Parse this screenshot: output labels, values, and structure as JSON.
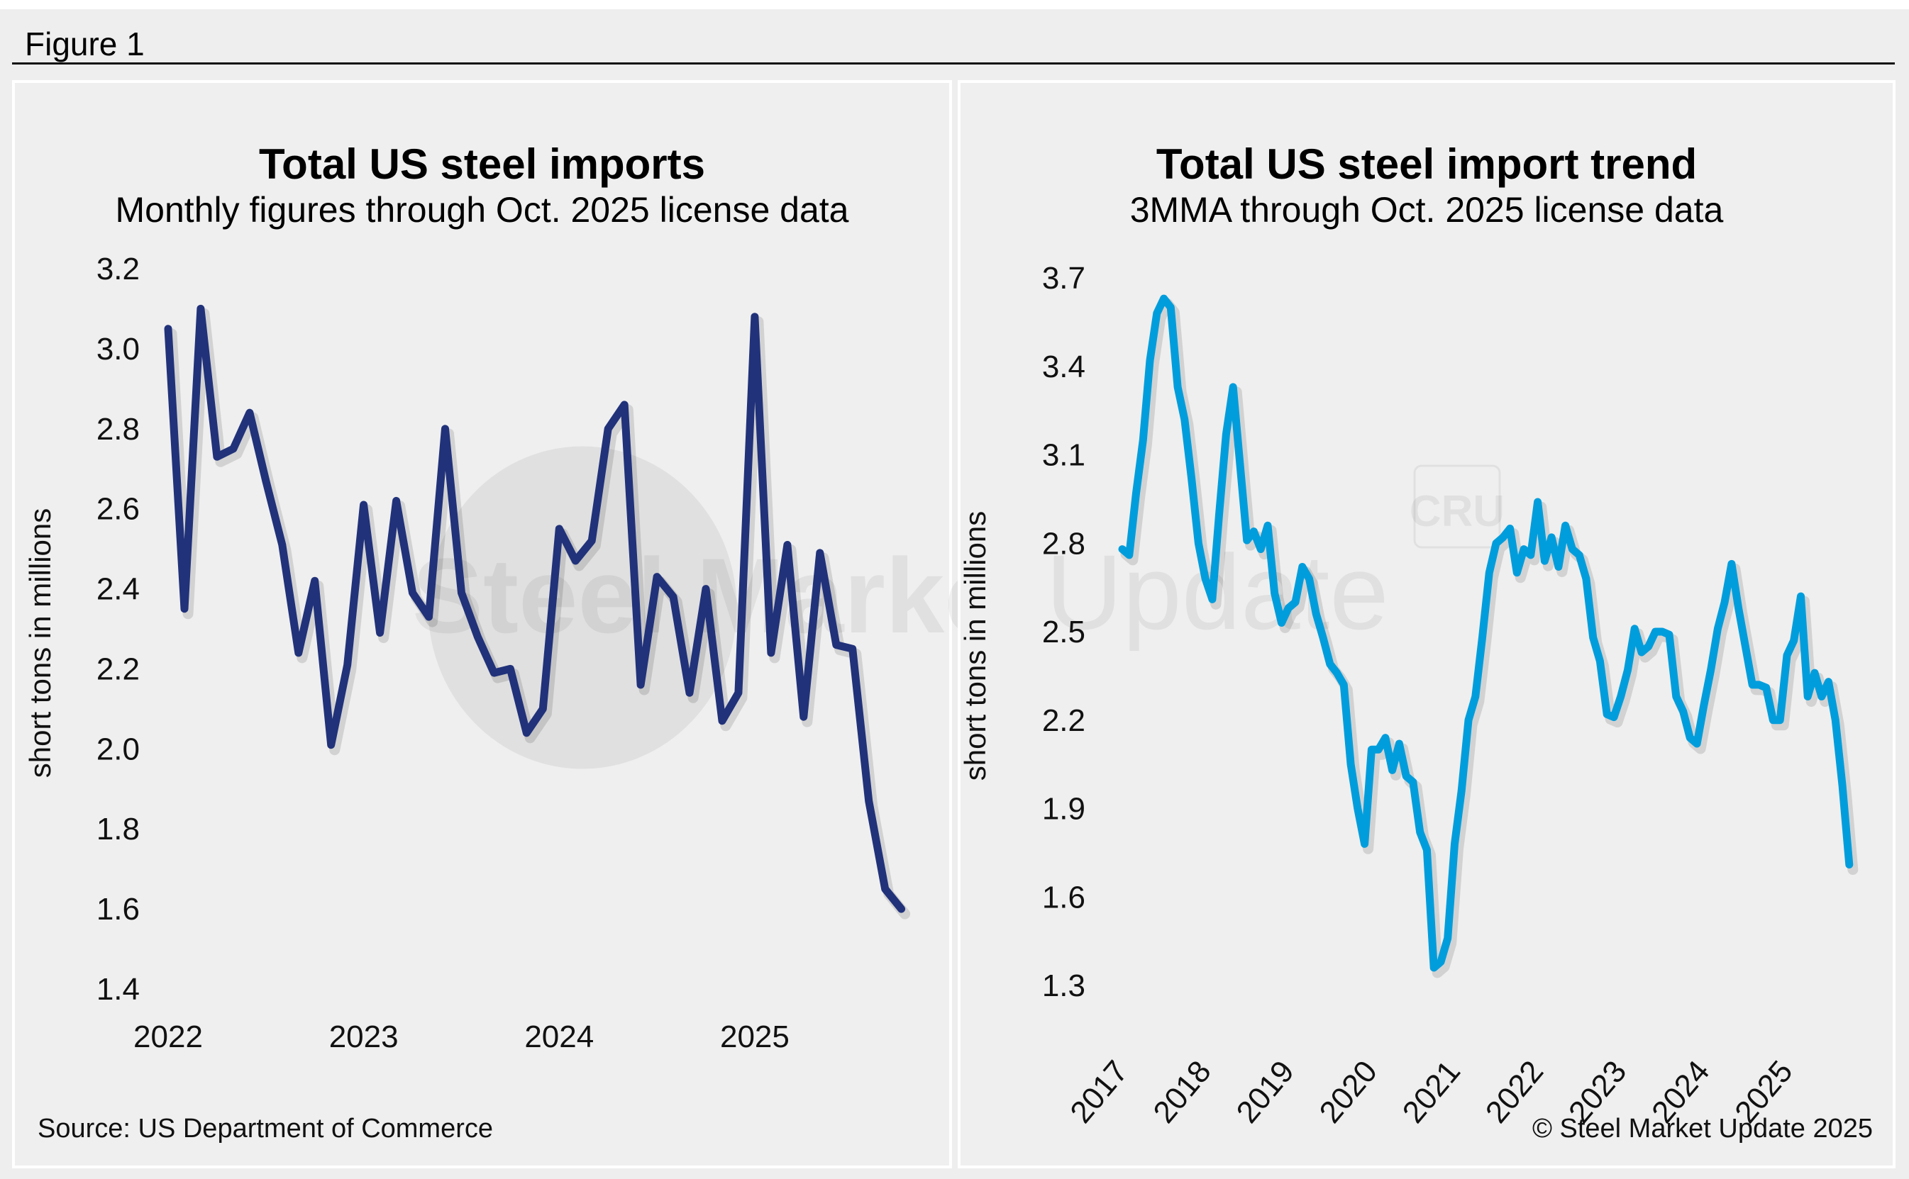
{
  "figure": {
    "label": "Figure 1",
    "source": "Source: US Department of Commerce",
    "copyright": "© Steel Market Update 2025",
    "watermark": {
      "brand_bold": "Steel Market",
      "brand_light": "Update",
      "partner": "CRU"
    }
  },
  "colors": {
    "left_series": "#21327a",
    "right_series": "#009ddc",
    "background": "#eeeeee"
  },
  "chart_data": [
    {
      "type": "line",
      "title": "Total US steel imports",
      "subtitle": "Monthly figures through Oct. 2025 license data",
      "xlabel": "",
      "ylabel": "short tons in millions",
      "ylim": [
        1.4,
        3.2
      ],
      "yticks": [
        "3.2",
        "3.0",
        "2.8",
        "2.6",
        "2.4",
        "2.2",
        "2.0",
        "1.8",
        "1.6",
        "1.4"
      ],
      "yticks_values": [
        3.2,
        3.0,
        2.8,
        2.6,
        2.4,
        2.2,
        2.0,
        1.8,
        1.6,
        1.4
      ],
      "xticks": [
        "2022",
        "2023",
        "2024",
        "2025"
      ],
      "x_start": "2022-01",
      "x_end": "2025-10",
      "grid": false,
      "legend": "none",
      "series": [
        {
          "name": "Total US steel imports (monthly)",
          "x": [
            "2022-01",
            "2022-02",
            "2022-03",
            "2022-04",
            "2022-05",
            "2022-06",
            "2022-07",
            "2022-08",
            "2022-09",
            "2022-10",
            "2022-11",
            "2022-12",
            "2023-01",
            "2023-02",
            "2023-03",
            "2023-04",
            "2023-05",
            "2023-06",
            "2023-07",
            "2023-08",
            "2023-09",
            "2023-10",
            "2023-11",
            "2023-12",
            "2024-01",
            "2024-02",
            "2024-03",
            "2024-04",
            "2024-05",
            "2024-06",
            "2024-07",
            "2024-08",
            "2024-09",
            "2024-10",
            "2024-11",
            "2024-12",
            "2025-01",
            "2025-02",
            "2025-03",
            "2025-04",
            "2025-05",
            "2025-06",
            "2025-07",
            "2025-08",
            "2025-09",
            "2025-10"
          ],
          "values": [
            3.05,
            2.35,
            3.1,
            2.73,
            2.75,
            2.84,
            2.67,
            2.51,
            2.24,
            2.42,
            2.01,
            2.21,
            2.61,
            2.29,
            2.62,
            2.39,
            2.33,
            2.8,
            2.39,
            2.28,
            2.19,
            2.2,
            2.04,
            2.1,
            2.55,
            2.47,
            2.52,
            2.8,
            2.86,
            2.16,
            2.43,
            2.38,
            2.14,
            2.4,
            2.07,
            2.14,
            3.08,
            2.24,
            2.51,
            2.08,
            2.49,
            2.26,
            2.25,
            1.87,
            1.65,
            1.6
          ]
        }
      ]
    },
    {
      "type": "line",
      "title": "Total US steel import trend",
      "subtitle": "3MMA through Oct. 2025 license data",
      "xlabel": "",
      "ylabel": "short tons in millions",
      "ylim": [
        1.3,
        3.7
      ],
      "yticks": [
        "3.7",
        "3.4",
        "3.1",
        "2.8",
        "2.5",
        "2.2",
        "1.9",
        "1.6",
        "1.3"
      ],
      "yticks_values": [
        3.7,
        3.4,
        3.1,
        2.8,
        2.5,
        2.2,
        1.9,
        1.6,
        1.3
      ],
      "xticks": [
        "2017",
        "2018",
        "2019",
        "2020",
        "2021",
        "2022",
        "2023",
        "2024",
        "2025"
      ],
      "x_start": "2017-01",
      "x_end": "2025-10",
      "grid": false,
      "legend": "none",
      "series": [
        {
          "name": "Total US steel imports (3MMA)",
          "values": [
            2.78,
            2.76,
            2.97,
            3.15,
            3.42,
            3.58,
            3.63,
            3.6,
            3.33,
            3.22,
            3.02,
            2.8,
            2.68,
            2.61,
            2.9,
            3.17,
            3.33,
            3.07,
            2.81,
            2.84,
            2.78,
            2.86,
            2.63,
            2.53,
            2.58,
            2.6,
            2.72,
            2.68,
            2.56,
            2.48,
            2.39,
            2.36,
            2.32,
            2.05,
            1.9,
            1.78,
            2.1,
            2.1,
            2.14,
            2.03,
            2.12,
            2.01,
            1.99,
            1.82,
            1.76,
            1.36,
            1.38,
            1.46,
            1.78,
            1.96,
            2.2,
            2.28,
            2.48,
            2.7,
            2.8,
            2.82,
            2.85,
            2.7,
            2.78,
            2.76,
            2.94,
            2.74,
            2.82,
            2.72,
            2.86,
            2.78,
            2.76,
            2.68,
            2.48,
            2.4,
            2.22,
            2.21,
            2.28,
            2.37,
            2.51,
            2.43,
            2.45,
            2.5,
            2.5,
            2.49,
            2.28,
            2.23,
            2.14,
            2.12,
            2.25,
            2.37,
            2.51,
            2.6,
            2.73,
            2.58,
            2.45,
            2.32,
            2.32,
            2.31,
            2.2,
            2.2,
            2.42,
            2.47,
            2.62,
            2.28,
            2.36,
            2.28,
            2.33,
            2.2,
            1.98,
            1.71
          ]
        }
      ]
    }
  ]
}
